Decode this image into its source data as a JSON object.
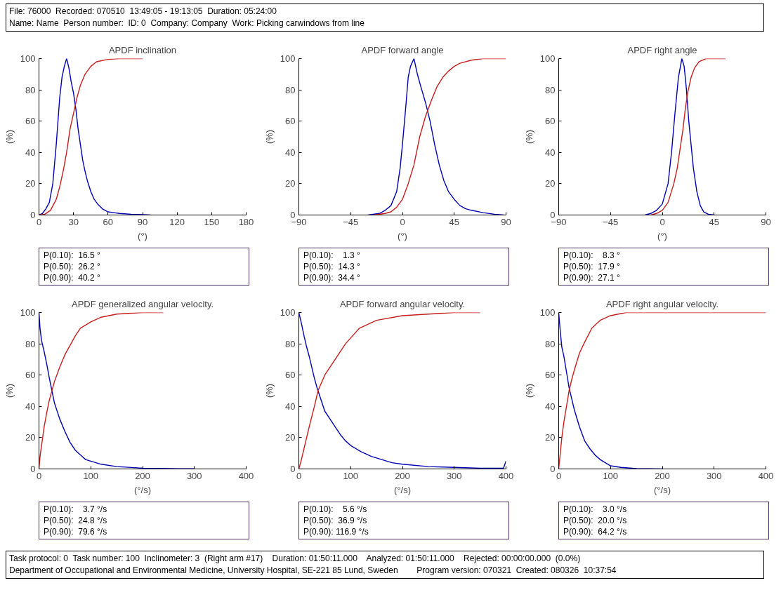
{
  "chart_data": [
    {
      "type": "line",
      "title": "APDF inclination",
      "xlabel": "(°)",
      "ylabel": "(%)",
      "xlim": [
        0,
        180
      ],
      "xticks": [
        0,
        30,
        60,
        90,
        120,
        150,
        180
      ],
      "ylim": [
        0,
        100
      ],
      "yticks": [
        0,
        20,
        40,
        60,
        80,
        100
      ],
      "grid": false,
      "annotations": [
        "P(0.10):   16.5 °",
        "P(0.50):   26.2 °",
        "P(0.90):   40.2 °"
      ],
      "series": [
        {
          "color": "#0000b4",
          "x": [
            0,
            3,
            6,
            9,
            12,
            15,
            18,
            20,
            22,
            24,
            26,
            28,
            30,
            32,
            34,
            36,
            38,
            40,
            42,
            45,
            48,
            51,
            55,
            60,
            65,
            70,
            80,
            90,
            97
          ],
          "values": [
            0,
            1,
            4,
            8,
            20,
            45,
            75,
            88,
            95,
            100,
            94,
            85,
            78,
            68,
            55,
            45,
            35,
            28,
            22,
            15,
            10,
            7,
            4,
            2,
            1.5,
            1,
            0.5,
            0.3,
            0
          ]
        },
        {
          "color": "#c81e1e",
          "x": [
            0,
            5,
            10,
            15,
            18,
            21,
            24,
            27,
            30,
            33,
            36,
            40,
            45,
            50,
            60,
            70,
            90
          ],
          "values": [
            0,
            0.5,
            3,
            10,
            18,
            28,
            40,
            55,
            65,
            75,
            83,
            90,
            95,
            98,
            99.5,
            100,
            100
          ]
        }
      ]
    },
    {
      "type": "line",
      "title": "APDF forward angle",
      "xlabel": "(°)",
      "ylabel": "(%)",
      "xlim": [
        -90,
        90
      ],
      "xticks": [
        -90,
        -45,
        0,
        45,
        90
      ],
      "ylim": [
        0,
        100
      ],
      "yticks": [
        0,
        20,
        40,
        60,
        80,
        100
      ],
      "grid": false,
      "annotations": [
        "P(0.10):     1.3 °",
        "P(0.50):   14.3 °",
        "P(0.90):   34.4 °"
      ],
      "series": [
        {
          "color": "#0000b4",
          "x": [
            -30,
            -20,
            -15,
            -10,
            -5,
            -2,
            0,
            3,
            5,
            7,
            10,
            13,
            16,
            20,
            24,
            28,
            32,
            36,
            40,
            45,
            50,
            55,
            60,
            70,
            80,
            88
          ],
          "values": [
            0,
            1,
            3,
            6,
            15,
            30,
            45,
            70,
            88,
            95,
            100,
            90,
            82,
            72,
            60,
            45,
            32,
            22,
            15,
            10,
            6,
            4,
            3,
            1.5,
            0.5,
            0
          ]
        },
        {
          "color": "#c81e1e",
          "x": [
            -25,
            -15,
            -10,
            -5,
            0,
            5,
            10,
            15,
            20,
            25,
            30,
            35,
            40,
            45,
            50,
            60,
            70,
            90
          ],
          "values": [
            0,
            1,
            2,
            5,
            10,
            20,
            32,
            50,
            63,
            73,
            82,
            88,
            92,
            95,
            97,
            99,
            100,
            100
          ]
        }
      ]
    },
    {
      "type": "line",
      "title": "APDF right angle",
      "xlabel": "(°)",
      "ylabel": "(%)",
      "xlim": [
        -90,
        90
      ],
      "xticks": [
        -90,
        -45,
        0,
        45,
        90
      ],
      "ylim": [
        0,
        100
      ],
      "yticks": [
        0,
        20,
        40,
        60,
        80,
        100
      ],
      "grid": false,
      "annotations": [
        "P(0.10):     8.3 °",
        "P(0.50):   17.9 °",
        "P(0.90):   27.1 °"
      ],
      "series": [
        {
          "color": "#0000b4",
          "x": [
            -15,
            -10,
            -5,
            0,
            5,
            8,
            11,
            14,
            17,
            19,
            21,
            23,
            25,
            27,
            30,
            33,
            36,
            40,
            45
          ],
          "values": [
            0,
            1,
            3,
            7,
            20,
            40,
            65,
            88,
            100,
            95,
            80,
            60,
            45,
            30,
            15,
            6,
            2,
            0.5,
            0
          ]
        },
        {
          "color": "#c81e1e",
          "x": [
            -10,
            -5,
            0,
            5,
            10,
            13,
            16,
            18,
            20,
            22,
            25,
            28,
            32,
            38,
            55
          ],
          "values": [
            0,
            1,
            3,
            8,
            20,
            30,
            45,
            55,
            68,
            78,
            88,
            94,
            98,
            100,
            100
          ]
        }
      ]
    },
    {
      "type": "line",
      "title": "APDF generalized angular velocity.",
      "xlabel": "(°/s)",
      "ylabel": "(%)",
      "xlim": [
        0,
        400
      ],
      "xticks": [
        0,
        100,
        200,
        300,
        400
      ],
      "ylim": [
        0,
        100
      ],
      "yticks": [
        0,
        20,
        40,
        60,
        80,
        100
      ],
      "grid": false,
      "annotations": [
        "P(0.10):     3.7 °/s",
        "P(0.50):   24.8 °/s",
        "P(0.90):   79.6 °/s"
      ],
      "series": [
        {
          "color": "#0000b4",
          "x": [
            0,
            2,
            5,
            10,
            15,
            20,
            25,
            30,
            40,
            50,
            60,
            70,
            80,
            90,
            100,
            120,
            150,
            200,
            250,
            300
          ],
          "values": [
            100,
            90,
            82,
            75,
            67,
            58,
            50,
            42,
            32,
            24,
            17,
            12,
            9,
            6,
            5,
            3,
            1.5,
            0.5,
            0.2,
            0.1
          ]
        },
        {
          "color": "#c81e1e",
          "x": [
            0,
            2,
            5,
            10,
            15,
            20,
            25,
            30,
            40,
            50,
            60,
            70,
            80,
            100,
            120,
            150,
            200,
            240
          ],
          "values": [
            0,
            8,
            15,
            27,
            36,
            44,
            50,
            56,
            65,
            73,
            79,
            85,
            90,
            94,
            97,
            99,
            100,
            100
          ]
        }
      ]
    },
    {
      "type": "line",
      "title": "APDF forward angular velocity.",
      "xlabel": "(°/s)",
      "ylabel": "(%)",
      "xlim": [
        0,
        400
      ],
      "xticks": [
        0,
        100,
        200,
        300,
        400
      ],
      "ylim": [
        0,
        100
      ],
      "yticks": [
        0,
        20,
        40,
        60,
        80,
        100
      ],
      "grid": false,
      "annotations": [
        "P(0.10):     5.6 °/s",
        "P(0.50):   36.9 °/s",
        "P(0.90): 116.9 °/s"
      ],
      "series": [
        {
          "color": "#0000b4",
          "x": [
            0,
            5,
            10,
            15,
            20,
            25,
            30,
            35,
            40,
            45,
            50,
            60,
            70,
            80,
            90,
            100,
            120,
            140,
            160,
            180,
            200,
            250,
            300,
            350,
            395,
            400
          ],
          "values": [
            100,
            93,
            85,
            78,
            72,
            65,
            58,
            52,
            47,
            42,
            37,
            32,
            27,
            22,
            18,
            15,
            11,
            8,
            6,
            4,
            3,
            1.5,
            1,
            0.5,
            0.5,
            5
          ]
        },
        {
          "color": "#c81e1e",
          "x": [
            0,
            5,
            10,
            15,
            20,
            30,
            37,
            50,
            70,
            90,
            117,
            150,
            200,
            250,
            300,
            350
          ],
          "values": [
            0,
            6,
            13,
            20,
            27,
            40,
            50,
            60,
            70,
            80,
            90,
            95,
            98,
            99,
            100,
            100
          ]
        }
      ]
    },
    {
      "type": "line",
      "title": "APDF right angular velocity.",
      "xlabel": "(°/s)",
      "ylabel": "(%)",
      "xlim": [
        0,
        400
      ],
      "xticks": [
        0,
        100,
        200,
        300,
        400
      ],
      "ylim": [
        0,
        100
      ],
      "yticks": [
        0,
        20,
        40,
        60,
        80,
        100
      ],
      "grid": false,
      "annotations": [
        "P(0.10):     3.0 °/s",
        "P(0.50):   20.0 °/s",
        "P(0.90):   64.2 °/s"
      ],
      "series": [
        {
          "color": "#0000b4",
          "x": [
            0,
            3,
            6,
            10,
            15,
            20,
            25,
            30,
            40,
            50,
            60,
            70,
            80,
            90,
            100,
            120,
            150,
            200
          ],
          "values": [
            100,
            88,
            78,
            72,
            62,
            52,
            45,
            38,
            27,
            18,
            13,
            9,
            6,
            4,
            2,
            1,
            0.3,
            0
          ]
        },
        {
          "color": "#c81e1e",
          "x": [
            0,
            3,
            6,
            10,
            15,
            20,
            25,
            30,
            40,
            50,
            64,
            80,
            100,
            130,
            400
          ],
          "values": [
            0,
            10,
            20,
            30,
            40,
            50,
            57,
            63,
            74,
            81,
            90,
            95,
            98,
            100,
            100
          ]
        }
      ]
    },
    {
      "type": "other",
      "annotations": [
        "File: 76000   Recorded: 070510   13:49:05 - 19:13:05   Duration: 05:24:00",
        "Name: Name   Person number:   ID: 0   Company: Company   Work: Picking carwindows from line"
      ]
    },
    {
      "type": "other",
      "annotations": [
        "Task protocol: 0   Task number: 100   Inclinometer: 3   (Right arm #17)     Duration: 01:50:11.000     Analyzed: 01:50:11.000     Rejected: 00:00:00.000  (0.0%)",
        "Department of Occupational and Environmental Medicine, University Hospital, SE-221 85 Lund, Sweden        Program version: 070321   Created: 080326   10:37:54"
      ]
    }
  ]
}
